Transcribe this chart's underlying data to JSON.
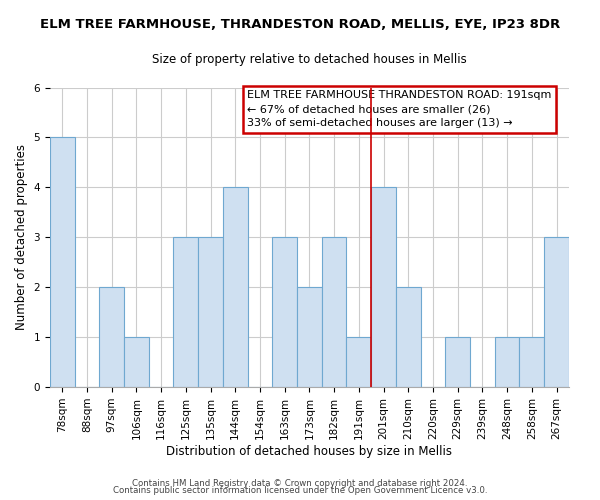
{
  "title": "ELM TREE FARMHOUSE, THRANDESTON ROAD, MELLIS, EYE, IP23 8DR",
  "subtitle": "Size of property relative to detached houses in Mellis",
  "xlabel": "Distribution of detached houses by size in Mellis",
  "ylabel": "Number of detached properties",
  "bar_labels": [
    "78sqm",
    "88sqm",
    "97sqm",
    "106sqm",
    "116sqm",
    "125sqm",
    "135sqm",
    "144sqm",
    "154sqm",
    "163sqm",
    "173sqm",
    "182sqm",
    "191sqm",
    "201sqm",
    "210sqm",
    "220sqm",
    "229sqm",
    "239sqm",
    "248sqm",
    "258sqm",
    "267sqm"
  ],
  "bar_values": [
    5,
    0,
    2,
    1,
    0,
    3,
    3,
    4,
    0,
    3,
    2,
    3,
    1,
    4,
    2,
    0,
    1,
    0,
    1,
    1,
    3
  ],
  "bar_color": "#cfe0f1",
  "bar_edge_color": "#6fa8d0",
  "highlight_index": 12,
  "highlight_line_color": "#cc0000",
  "annotation_text": "ELM TREE FARMHOUSE THRANDESTON ROAD: 191sqm\n← 67% of detached houses are smaller (26)\n33% of semi-detached houses are larger (13) →",
  "annotation_box_color": "#ffffff",
  "annotation_box_edge_color": "#cc0000",
  "ylim": [
    0,
    6
  ],
  "yticks": [
    0,
    1,
    2,
    3,
    4,
    5,
    6
  ],
  "footer_line1": "Contains HM Land Registry data © Crown copyright and database right 2024.",
  "footer_line2": "Contains public sector information licensed under the Open Government Licence v3.0.",
  "background_color": "#ffffff",
  "grid_color": "#cccccc",
  "title_fontsize": 9.5,
  "subtitle_fontsize": 8.5,
  "axis_label_fontsize": 8.5,
  "tick_fontsize": 7.5
}
